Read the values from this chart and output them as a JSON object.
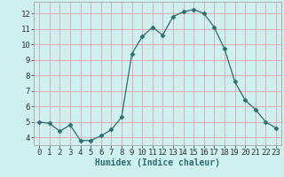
{
  "x": [
    0,
    1,
    2,
    3,
    4,
    5,
    6,
    7,
    8,
    9,
    10,
    11,
    12,
    13,
    14,
    15,
    16,
    17,
    18,
    19,
    20,
    21,
    22,
    23
  ],
  "y": [
    5.0,
    4.9,
    4.4,
    4.8,
    3.8,
    3.8,
    4.1,
    4.5,
    5.3,
    9.4,
    10.5,
    11.1,
    10.6,
    11.8,
    12.1,
    12.25,
    12.0,
    11.1,
    9.7,
    7.6,
    6.4,
    5.8,
    5.0,
    4.6
  ],
  "xlabel": "Humidex (Indice chaleur)",
  "xlim": [
    -0.5,
    23.5
  ],
  "ylim": [
    3.5,
    12.75
  ],
  "yticks": [
    4,
    5,
    6,
    7,
    8,
    9,
    10,
    11,
    12
  ],
  "xticks": [
    0,
    1,
    2,
    3,
    4,
    5,
    6,
    7,
    8,
    9,
    10,
    11,
    12,
    13,
    14,
    15,
    16,
    17,
    18,
    19,
    20,
    21,
    22,
    23
  ],
  "line_color": "#2d6e6e",
  "marker": "D",
  "marker_size": 2.5,
  "bg_color": "#cff0f0",
  "grid_color": "#e8a0a0",
  "label_fontsize": 7,
  "tick_fontsize": 6.5
}
